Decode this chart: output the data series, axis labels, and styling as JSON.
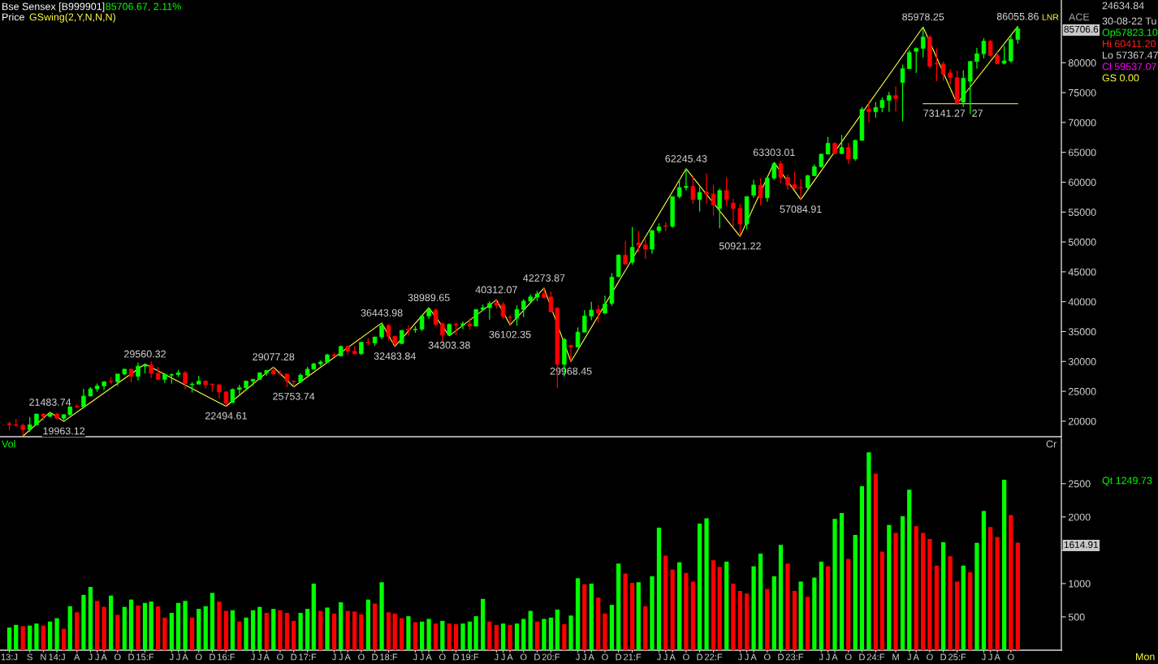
{
  "chart_data": [
    {
      "type": "candlestick",
      "title": "Bse Sensex [B999901]",
      "subtitle": "85706.67, 2.11%",
      "x": [
        "2013-06",
        "2013-07",
        "2013-08",
        "2013-09",
        "2013-10",
        "2013-11",
        "2013-12",
        "2014-01",
        "2014-02",
        "2014-03",
        "2014-04",
        "2014-05",
        "2014-06",
        "2014-07",
        "2014-08",
        "2014-09",
        "2014-10",
        "2014-11",
        "2014-12",
        "2015-01",
        "2015-02",
        "2015-03",
        "2015-04",
        "2015-05",
        "2015-06",
        "2015-07",
        "2015-08",
        "2015-09",
        "2015-10",
        "2015-11",
        "2015-12",
        "2016-01",
        "2016-02",
        "2016-03",
        "2016-04",
        "2016-05",
        "2016-06",
        "2016-07",
        "2016-08",
        "2016-09",
        "2016-10",
        "2016-11",
        "2016-12",
        "2017-01",
        "2017-02",
        "2017-03",
        "2017-04",
        "2017-05",
        "2017-06",
        "2017-07",
        "2017-08",
        "2017-09",
        "2017-10",
        "2017-11",
        "2017-12",
        "2018-01",
        "2018-02",
        "2018-03",
        "2018-04",
        "2018-05",
        "2018-06",
        "2018-07",
        "2018-08",
        "2018-09",
        "2018-10",
        "2018-11",
        "2018-12",
        "2019-01",
        "2019-02",
        "2019-03",
        "2019-04",
        "2019-05",
        "2019-06",
        "2019-07",
        "2019-08",
        "2019-09",
        "2019-10",
        "2019-11",
        "2019-12",
        "2020-01",
        "2020-02",
        "2020-03",
        "2020-04",
        "2020-05",
        "2020-06",
        "2020-07",
        "2020-08",
        "2020-09",
        "2020-10",
        "2020-11",
        "2020-12",
        "2021-01",
        "2021-02",
        "2021-03",
        "2021-04",
        "2021-05",
        "2021-06",
        "2021-07",
        "2021-08",
        "2021-09",
        "2021-10",
        "2021-11",
        "2021-12",
        "2022-01",
        "2022-02",
        "2022-03",
        "2022-04",
        "2022-05",
        "2022-06",
        "2022-07",
        "2022-08",
        "2022-09",
        "2022-10",
        "2022-11",
        "2022-12",
        "2023-01",
        "2023-02",
        "2023-03",
        "2023-04",
        "2023-05",
        "2023-06",
        "2023-07",
        "2023-08",
        "2023-09",
        "2023-10",
        "2023-11",
        "2023-12",
        "2024-01",
        "2024-02",
        "2024-03",
        "2024-04",
        "2024-05",
        "2024-06",
        "2024-07",
        "2024-08",
        "2024-09",
        "2024-10",
        "2024-11",
        "2024-12",
        "2025-01",
        "2025-02",
        "2025-03",
        "2025-04",
        "2025-05",
        "2025-06",
        "2025-07",
        "2025-08",
        "2025-09",
        "2025-10",
        "2025-11"
      ],
      "ohlc": [
        [
          19600,
          19900,
          18500,
          19400
        ],
        [
          19400,
          20400,
          19100,
          19300
        ],
        [
          19300,
          19600,
          17500,
          18600
        ],
        [
          18600,
          20700,
          18200,
          19400
        ],
        [
          19400,
          21200,
          19300,
          21200
        ],
        [
          21200,
          21300,
          20100,
          20800
        ],
        [
          20800,
          21483.74,
          20600,
          21200
        ],
        [
          21200,
          21400,
          20300,
          20500
        ],
        [
          20500,
          21100,
          19963.12,
          21100
        ],
        [
          21100,
          22500,
          20900,
          22400
        ],
        [
          22500,
          22900,
          22200,
          22400
        ],
        [
          22400,
          25400,
          22300,
          24200
        ],
        [
          24200,
          25700,
          24200,
          25400
        ],
        [
          25400,
          26300,
          24900,
          25900
        ],
        [
          25900,
          26700,
          25200,
          26600
        ],
        [
          26700,
          27400,
          26200,
          26600
        ],
        [
          26600,
          27900,
          25900,
          27900
        ],
        [
          27900,
          28800,
          27700,
          28700
        ],
        [
          28700,
          28800,
          26500,
          27500
        ],
        [
          27500,
          29800,
          26800,
          29200
        ],
        [
          29200,
          29560.32,
          28000,
          29400
        ],
        [
          29400,
          30000,
          27200,
          28000
        ],
        [
          28000,
          29100,
          26900,
          27000
        ],
        [
          27000,
          28100,
          26400,
          27800
        ],
        [
          27700,
          28000,
          26300,
          27800
        ],
        [
          27800,
          28600,
          27400,
          28100
        ],
        [
          28100,
          28400,
          25300,
          26300
        ],
        [
          26100,
          26500,
          24800,
          26200
        ],
        [
          26200,
          27600,
          26200,
          26700
        ],
        [
          26700,
          26800,
          25500,
          26100
        ],
        [
          26200,
          26300,
          24900,
          26100
        ],
        [
          26100,
          26200,
          23800,
          24900
        ],
        [
          24900,
          25000,
          22494.61,
          23000
        ],
        [
          23100,
          25500,
          23100,
          25300
        ],
        [
          25300,
          26100,
          24500,
          25600
        ],
        [
          25600,
          26800,
          25100,
          26700
        ],
        [
          26700,
          27100,
          25900,
          27000
        ],
        [
          27000,
          28200,
          27000,
          28100
        ],
        [
          28100,
          28500,
          27600,
          28500
        ],
        [
          28500,
          29077.28,
          27700,
          27900
        ],
        [
          28000,
          28500,
          27600,
          27900
        ],
        [
          27900,
          28000,
          25700,
          26700
        ],
        [
          26700,
          26800,
          25753.74,
          26600
        ],
        [
          26600,
          28000,
          26400,
          27700
        ],
        [
          27700,
          29100,
          27600,
          28700
        ],
        [
          28700,
          29800,
          28700,
          29600
        ],
        [
          29600,
          30200,
          29200,
          29900
        ],
        [
          29900,
          31300,
          29800,
          31100
        ],
        [
          31100,
          31500,
          30700,
          30900
        ],
        [
          30900,
          32700,
          30900,
          32500
        ],
        [
          32500,
          32700,
          31100,
          31700
        ],
        [
          31700,
          32500,
          31100,
          31300
        ],
        [
          31300,
          33300,
          31100,
          33200
        ],
        [
          33200,
          33900,
          32700,
          33100
        ],
        [
          33100,
          34100,
          32600,
          34100
        ],
        [
          34100,
          36443.98,
          33700,
          36000
        ],
        [
          36000,
          36300,
          33500,
          34200
        ],
        [
          34200,
          34300,
          32483.84,
          33000
        ],
        [
          33000,
          35200,
          33000,
          35200
        ],
        [
          35400,
          36000,
          34300,
          35200
        ],
        [
          35300,
          35900,
          34800,
          35400
        ],
        [
          35400,
          37600,
          35100,
          37600
        ],
        [
          37600,
          38989.65,
          37100,
          38600
        ],
        [
          38600,
          38900,
          36000,
          36200
        ],
        [
          36300,
          36600,
          33300,
          34400
        ],
        [
          34400,
          36400,
          34303.38,
          36200
        ],
        [
          36200,
          36600,
          34400,
          36100
        ],
        [
          36100,
          36700,
          35400,
          36300
        ],
        [
          36300,
          37200,
          35300,
          35900
        ],
        [
          35900,
          38700,
          35900,
          38700
        ],
        [
          38700,
          39500,
          38500,
          39000
        ],
        [
          39000,
          40100,
          37000,
          39700
        ],
        [
          39800,
          40312.07,
          38900,
          39400
        ],
        [
          39500,
          40000,
          37100,
          37500
        ],
        [
          37400,
          37800,
          36102.35,
          37300
        ],
        [
          37300,
          39400,
          36000,
          38700
        ],
        [
          38700,
          40400,
          37400,
          40100
        ],
        [
          40100,
          41200,
          39900,
          40800
        ],
        [
          40800,
          41800,
          40100,
          41300
        ],
        [
          41300,
          42273.87,
          40500,
          40700
        ],
        [
          40800,
          41700,
          38200,
          38300
        ],
        [
          38900,
          39100,
          25600,
          29500
        ],
        [
          29500,
          33900,
          27500,
          33700
        ],
        [
          32700,
          32800,
          29968.45,
          32400
        ],
        [
          32400,
          35700,
          32300,
          34900
        ],
        [
          34900,
          38600,
          34900,
          37600
        ],
        [
          37600,
          40000,
          36900,
          38600
        ],
        [
          38700,
          39400,
          36500,
          38100
        ],
        [
          38100,
          41000,
          37900,
          39600
        ],
        [
          39700,
          44800,
          39300,
          44100
        ],
        [
          44200,
          47900,
          44100,
          47800
        ],
        [
          47800,
          50200,
          46200,
          46300
        ],
        [
          46600,
          52500,
          46200,
          49100
        ],
        [
          49800,
          51800,
          48200,
          49500
        ],
        [
          49500,
          50400,
          47200,
          48800
        ],
        [
          48800,
          52000,
          48000,
          51900
        ],
        [
          51900,
          53100,
          51500,
          52500
        ],
        [
          52700,
          53300,
          51800,
          52600
        ],
        [
          52600,
          57600,
          52400,
          57600
        ],
        [
          57600,
          60400,
          57300,
          59100
        ],
        [
          59100,
          62245.43,
          58600,
          59300
        ],
        [
          59300,
          61000,
          56400,
          57100
        ],
        [
          57100,
          59200,
          55100,
          58300
        ],
        [
          58300,
          61500,
          56400,
          58000
        ],
        [
          58000,
          59600,
          54400,
          56200
        ],
        [
          55600,
          58900,
          52300,
          58600
        ],
        [
          58600,
          60800,
          56000,
          57100
        ],
        [
          56500,
          57200,
          52600,
          55600
        ],
        [
          55600,
          56400,
          50921.22,
          53000
        ],
        [
          53000,
          57600,
          52100,
          57600
        ],
        [
          57823.1,
          60411.2,
          57367.47,
          59537.07
        ],
        [
          59500,
          60700,
          56100,
          57400
        ],
        [
          57400,
          60800,
          56700,
          60700
        ],
        [
          60700,
          63303.01,
          60400,
          63100
        ],
        [
          63100,
          63600,
          59800,
          60800
        ],
        [
          60800,
          61300,
          58700,
          59500
        ],
        [
          59600,
          61700,
          58800,
          59000
        ],
        [
          59100,
          60500,
          57084.91,
          59000
        ],
        [
          59100,
          61200,
          58800,
          61100
        ],
        [
          61100,
          63000,
          61000,
          62600
        ],
        [
          62600,
          64800,
          62400,
          64700
        ],
        [
          64700,
          67600,
          64700,
          66500
        ],
        [
          66500,
          66700,
          64700,
          64800
        ],
        [
          64800,
          67900,
          64700,
          65800
        ],
        [
          65800,
          66600,
          63100,
          63900
        ],
        [
          63900,
          67100,
          63600,
          67000
        ],
        [
          67000,
          72600,
          67000,
          72200
        ],
        [
          72200,
          73400,
          70000,
          71800
        ],
        [
          71800,
          73400,
          70800,
          72500
        ],
        [
          72500,
          74200,
          71700,
          73700
        ],
        [
          73700,
          75100,
          71800,
          74500
        ],
        [
          74500,
          76000,
          71900,
          74000
        ],
        [
          76700,
          79700,
          70200,
          79000
        ],
        [
          79000,
          82100,
          79000,
          81700
        ],
        [
          81900,
          82600,
          78300,
          82400
        ],
        [
          82400,
          85978.25,
          80900,
          84300
        ],
        [
          84300,
          84600,
          79100,
          79400
        ],
        [
          79900,
          82400,
          76900,
          79800
        ],
        [
          79800,
          80200,
          77000,
          78100
        ],
        [
          78300,
          78900,
          76400,
          77500
        ],
        [
          77500,
          78700,
          73141.27,
          73200
        ],
        [
          73400,
          78700,
          72600,
          77400
        ],
        [
          76900,
          80300,
          71400,
          80200
        ],
        [
          80200,
          82500,
          79000,
          81500
        ],
        [
          81500,
          84100,
          80700,
          83600
        ],
        [
          83600,
          83800,
          81000,
          81200
        ],
        [
          81200,
          82000,
          79800,
          79800
        ],
        [
          79900,
          82800,
          79700,
          80300
        ],
        [
          80300,
          84700,
          80000,
          83900
        ],
        [
          83900,
          86055.86,
          83200,
          85706.67
        ]
      ],
      "colors": [
        "#ff0000",
        "#ff0000",
        "#ff0000",
        "#00ff00",
        "#00ff00",
        "#ff0000",
        "#00ff00",
        "#ff0000",
        "#00ff00",
        "#00ff00",
        "#ff0000",
        "#00ff00",
        "#00ff00",
        "#00ff00",
        "#00ff00",
        "#ff0000",
        "#00ff00",
        "#00ff00",
        "#ff0000",
        "#00ff00",
        "#00ff00",
        "#ff0000",
        "#ff0000",
        "#00ff00",
        "#00ff00",
        "#00ff00",
        "#ff0000",
        "#00ff00",
        "#00ff00",
        "#ff0000",
        "#ff0000",
        "#ff0000",
        "#ff0000",
        "#00ff00",
        "#00ff00",
        "#00ff00",
        "#00ff00",
        "#00ff00",
        "#00ff00",
        "#ff0000",
        "#ff0000",
        "#ff0000",
        "#ff0000",
        "#00ff00",
        "#00ff00",
        "#00ff00",
        "#00ff00",
        "#00ff00",
        "#ff0000",
        "#00ff00",
        "#ff0000",
        "#ff0000",
        "#00ff00",
        "#ff0000",
        "#00ff00",
        "#00ff00",
        "#ff0000",
        "#ff0000",
        "#00ff00",
        "#ff0000",
        "#00ff00",
        "#00ff00",
        "#00ff00",
        "#ff0000",
        "#ff0000",
        "#00ff00",
        "#ff0000",
        "#00ff00",
        "#ff0000",
        "#00ff00",
        "#00ff00",
        "#00ff00",
        "#ff0000",
        "#ff0000",
        "#ff0000",
        "#00ff00",
        "#00ff00",
        "#00ff00",
        "#00ff00",
        "#ff0000",
        "#ff0000",
        "#ff0000",
        "#00ff00",
        "#ff0000",
        "#00ff00",
        "#00ff00",
        "#00ff00",
        "#ff0000",
        "#00ff00",
        "#00ff00",
        "#00ff00",
        "#ff0000",
        "#00ff00",
        "#ff0000",
        "#ff0000",
        "#00ff00",
        "#00ff00",
        "#ff0000",
        "#00ff00",
        "#00ff00",
        "#00ff00",
        "#ff0000",
        "#00ff00",
        "#ff0000",
        "#ff0000",
        "#00ff00",
        "#ff0000",
        "#ff0000",
        "#ff0000",
        "#00ff00",
        "#00ff00",
        "#ff0000",
        "#00ff00",
        "#00ff00",
        "#ff0000",
        "#ff0000",
        "#ff0000",
        "#ff0000",
        "#00ff00",
        "#00ff00",
        "#00ff00",
        "#00ff00",
        "#ff0000",
        "#00ff00",
        "#ff0000",
        "#00ff00",
        "#00ff00",
        "#ff0000",
        "#00ff00",
        "#00ff00",
        "#00ff00",
        "#ff0000",
        "#00ff00",
        "#00ff00",
        "#00ff00",
        "#00ff00",
        "#ff0000",
        "#ff0000",
        "#ff0000",
        "#ff0000",
        "#ff0000",
        "#00ff00",
        "#00ff00",
        "#00ff00",
        "#00ff00",
        "#ff0000",
        "#ff0000",
        "#00ff00",
        "#00ff00",
        "#00ff00"
      ],
      "series": [
        {
          "name": "GSwing(2,Y,N,N,N)",
          "type": "line",
          "color": "#ffff40",
          "x": [
            "2013-08",
            "2013-12",
            "2014-02",
            "2015-02",
            "2016-02",
            "2016-09",
            "2016-12",
            "2018-01",
            "2018-03",
            "2018-08",
            "2018-11",
            "2019-06",
            "2019-08",
            "2020-01",
            "2020-05",
            "2021-10",
            "2022-06",
            "2022-11",
            "2023-03",
            "2024-09",
            "2025-02",
            "2025-11"
          ],
          "values": [
            17500,
            21483.74,
            19963.12,
            29560.32,
            22494.61,
            29077.28,
            25753.74,
            36443.98,
            32483.84,
            38989.65,
            34303.38,
            40312.07,
            36102.35,
            42273.87,
            29968.45,
            62245.43,
            50921.22,
            63303.01,
            57084.91,
            85978.25,
            73141.27,
            86055.86
          ],
          "value_labels": [
            null,
            "21483.74",
            "19963.12",
            "29560.32",
            "22494.61",
            "29077.28",
            "25753.74",
            "36443.98",
            "32483.84",
            "38989.65",
            "34303.38",
            "40312.07",
            "36102.35",
            "42273.87",
            "29968.45",
            "62245.43",
            "50921.22",
            "63303.01",
            "57084.91",
            "85978.25",
            null,
            "86055.86"
          ]
        },
        {
          "type": "line",
          "color": "#ffff80",
          "x": [
            "2024-09",
            "2025-11"
          ],
          "values": [
            73141.27,
            73141.27
          ],
          "value_labels": [
            "73141.27",
            null
          ]
        }
      ],
      "xlim": [
        "2013-04-20",
        "2026-05-16"
      ],
      "ylim": [
        17400,
        90500
      ],
      "yticks": [
        20000,
        25000,
        30000,
        35000,
        40000,
        45000,
        50000,
        55000,
        60000,
        65000,
        70000,
        75000,
        80000
      ],
      "tick_labels": "y",
      "legend": "top left",
      "annotations": [
        "Price",
        "LNR",
        "ACE",
        "24634.84",
        "30-08-22 Tu",
        "Op57823.10",
        "Hi 60411.20",
        "Lo 57367.47",
        "Cl 59537.07",
        "GS 0.00",
        "85706.6",
        {
          "text": "27",
          "x": "2025-02",
          "y": 73141.27
        }
      ]
    },
    {
      "type": "bar",
      "title": "Vol",
      "x": [
        "2013-06",
        "2013-07",
        "2013-08",
        "2013-09",
        "2013-10",
        "2013-11",
        "2013-12",
        "2014-01",
        "2014-02",
        "2014-03",
        "2014-04",
        "2014-05",
        "2014-06",
        "2014-07",
        "2014-08",
        "2014-09",
        "2014-10",
        "2014-11",
        "2014-12",
        "2015-01",
        "2015-02",
        "2015-03",
        "2015-04",
        "2015-05",
        "2015-06",
        "2015-07",
        "2015-08",
        "2015-09",
        "2015-10",
        "2015-11",
        "2015-12",
        "2016-01",
        "2016-02",
        "2016-03",
        "2016-04",
        "2016-05",
        "2016-06",
        "2016-07",
        "2016-08",
        "2016-09",
        "2016-10",
        "2016-11",
        "2016-12",
        "2017-01",
        "2017-02",
        "2017-03",
        "2017-04",
        "2017-05",
        "2017-06",
        "2017-07",
        "2017-08",
        "2017-09",
        "2017-10",
        "2017-11",
        "2017-12",
        "2018-01",
        "2018-02",
        "2018-03",
        "2018-04",
        "2018-05",
        "2018-06",
        "2018-07",
        "2018-08",
        "2018-09",
        "2018-10",
        "2018-11",
        "2018-12",
        "2019-01",
        "2019-02",
        "2019-03",
        "2019-04",
        "2019-05",
        "2019-06",
        "2019-07",
        "2019-08",
        "2019-09",
        "2019-10",
        "2019-11",
        "2019-12",
        "2020-01",
        "2020-02",
        "2020-03",
        "2020-04",
        "2020-05",
        "2020-06",
        "2020-07",
        "2020-08",
        "2020-09",
        "2020-10",
        "2020-11",
        "2020-12",
        "2021-01",
        "2021-02",
        "2021-03",
        "2021-04",
        "2021-05",
        "2021-06",
        "2021-07",
        "2021-08",
        "2021-09",
        "2021-10",
        "2021-11",
        "2021-12",
        "2022-01",
        "2022-02",
        "2022-03",
        "2022-04",
        "2022-05",
        "2022-06",
        "2022-07",
        "2022-08",
        "2022-09",
        "2022-10",
        "2022-11",
        "2022-12",
        "2023-01",
        "2023-02",
        "2023-03",
        "2023-04",
        "2023-05",
        "2023-06",
        "2023-07",
        "2023-08",
        "2023-09",
        "2023-10",
        "2023-11",
        "2023-12",
        "2024-01",
        "2024-02",
        "2024-03",
        "2024-04",
        "2024-05",
        "2024-06",
        "2024-07",
        "2024-08",
        "2024-09",
        "2024-10",
        "2024-11",
        "2024-12",
        "2025-01",
        "2025-02",
        "2025-03",
        "2025-04",
        "2025-05",
        "2025-06",
        "2025-07",
        "2025-08",
        "2025-09",
        "2025-10",
        "2025-11"
      ],
      "values": [
        340,
        380,
        360,
        370,
        400,
        370,
        430,
        480,
        320,
        660,
        570,
        830,
        950,
        740,
        650,
        820,
        530,
        650,
        760,
        670,
        710,
        730,
        660,
        490,
        560,
        710,
        740,
        490,
        620,
        660,
        860,
        730,
        590,
        600,
        430,
        490,
        600,
        650,
        560,
        620,
        600,
        560,
        440,
        560,
        620,
        1000,
        590,
        640,
        550,
        720,
        590,
        580,
        540,
        760,
        700,
        1020,
        570,
        550,
        480,
        510,
        420,
        430,
        470,
        400,
        440,
        400,
        390,
        400,
        430,
        510,
        770,
        430,
        380,
        400,
        380,
        400,
        470,
        590,
        430,
        470,
        490,
        610,
        390,
        520,
        1080,
        990,
        1000,
        790,
        550,
        680,
        1300,
        1150,
        1010,
        1020,
        660,
        1110,
        1840,
        1420,
        1210,
        1320,
        1160,
        1030,
        1900,
        1980,
        1350,
        1250,
        1330,
        1000,
        890,
        850,
        1260,
        1450,
        920,
        1110,
        1580,
        1300,
        890,
        1030,
        800,
        1090,
        1330,
        1260,
        1970,
        2060,
        1370,
        1730,
        2460,
        2970,
        2650,
        1480,
        1880,
        1760,
        2010,
        2410,
        1860,
        1760,
        1670,
        1270,
        1620,
        1410,
        1030,
        1270,
        1170,
        1610,
        2090,
        1850,
        1700,
        2560,
        2030,
        1614.91
      ],
      "colors": [
        "#00ff00",
        "#00ff00",
        "#ff0000",
        "#00ff00",
        "#00ff00",
        "#ff0000",
        "#00ff00",
        "#00ff00",
        "#ff0000",
        "#00ff00",
        "#ff0000",
        "#00ff00",
        "#00ff00",
        "#ff0000",
        "#ff0000",
        "#00ff00",
        "#ff0000",
        "#00ff00",
        "#00ff00",
        "#ff0000",
        "#00ff00",
        "#00ff00",
        "#ff0000",
        "#ff0000",
        "#00ff00",
        "#00ff00",
        "#00ff00",
        "#ff0000",
        "#00ff00",
        "#00ff00",
        "#00ff00",
        "#ff0000",
        "#ff0000",
        "#00ff00",
        "#ff0000",
        "#00ff00",
        "#00ff00",
        "#00ff00",
        "#ff0000",
        "#00ff00",
        "#ff0000",
        "#ff0000",
        "#ff0000",
        "#00ff00",
        "#00ff00",
        "#00ff00",
        "#ff0000",
        "#00ff00",
        "#ff0000",
        "#00ff00",
        "#ff0000",
        "#ff0000",
        "#ff0000",
        "#00ff00",
        "#ff0000",
        "#00ff00",
        "#ff0000",
        "#ff0000",
        "#ff0000",
        "#00ff00",
        "#ff0000",
        "#00ff00",
        "#00ff00",
        "#ff0000",
        "#00ff00",
        "#ff0000",
        "#ff0000",
        "#00ff00",
        "#00ff00",
        "#00ff00",
        "#00ff00",
        "#ff0000",
        "#ff0000",
        "#00ff00",
        "#ff0000",
        "#00ff00",
        "#00ff00",
        "#00ff00",
        "#ff0000",
        "#00ff00",
        "#00ff00",
        "#00ff00",
        "#ff0000",
        "#00ff00",
        "#00ff00",
        "#ff0000",
        "#00ff00",
        "#ff0000",
        "#ff0000",
        "#00ff00",
        "#00ff00",
        "#ff0000",
        "#ff0000",
        "#00ff00",
        "#ff0000",
        "#00ff00",
        "#00ff00",
        "#ff0000",
        "#ff0000",
        "#00ff00",
        "#ff0000",
        "#ff0000",
        "#00ff00",
        "#00ff00",
        "#ff0000",
        "#ff0000",
        "#00ff00",
        "#ff0000",
        "#ff0000",
        "#ff0000",
        "#00ff00",
        "#00ff00",
        "#ff0000",
        "#00ff00",
        "#00ff00",
        "#ff0000",
        "#ff0000",
        "#00ff00",
        "#ff0000",
        "#00ff00",
        "#00ff00",
        "#ff0000",
        "#00ff00",
        "#00ff00",
        "#ff0000",
        "#00ff00",
        "#00ff00",
        "#00ff00",
        "#ff0000",
        "#ff0000",
        "#00ff00",
        "#ff0000",
        "#00ff00",
        "#00ff00",
        "#ff0000",
        "#ff0000",
        "#ff0000",
        "#ff0000",
        "#00ff00",
        "#ff0000",
        "#ff0000",
        "#00ff00",
        "#ff0000",
        "#00ff00",
        "#00ff00",
        "#ff0000",
        "#ff0000",
        "#00ff00",
        "#ff0000",
        "#ff0000"
      ],
      "xlim": [
        "2013-04-20",
        "2026-05-16"
      ],
      "ylim": [
        0,
        3180
      ],
      "xticks": [
        {
          "value": "2013-06",
          "label": "13:J"
        },
        {
          "value": "2013-09",
          "label": "S"
        },
        {
          "value": "2013-11",
          "label": "N"
        },
        {
          "value": "2014-01",
          "label": "14:J"
        },
        {
          "value": "2014-04",
          "label": "A"
        },
        {
          "value": "2014-06",
          "label": "J"
        },
        {
          "value": "2014-07",
          "label": "J"
        },
        {
          "value": "2014-08",
          "label": "A"
        },
        {
          "value": "2014-10",
          "label": "O"
        },
        {
          "value": "2014-12",
          "label": "D"
        },
        {
          "value": "2015-02",
          "label": "15:F"
        },
        {
          "value": "2015-06",
          "label": "J"
        },
        {
          "value": "2015-07",
          "label": "J"
        },
        {
          "value": "2015-08",
          "label": "A"
        },
        {
          "value": "2015-10",
          "label": "O"
        },
        {
          "value": "2015-12",
          "label": "D"
        },
        {
          "value": "2016-02",
          "label": "16:F"
        },
        {
          "value": "2016-06",
          "label": "J"
        },
        {
          "value": "2016-07",
          "label": "J"
        },
        {
          "value": "2016-08",
          "label": "A"
        },
        {
          "value": "2016-10",
          "label": "O"
        },
        {
          "value": "2016-12",
          "label": "D"
        },
        {
          "value": "2017-02",
          "label": "17:F"
        },
        {
          "value": "2017-06",
          "label": "J"
        },
        {
          "value": "2017-07",
          "label": "J"
        },
        {
          "value": "2017-08",
          "label": "A"
        },
        {
          "value": "2017-10",
          "label": "O"
        },
        {
          "value": "2017-12",
          "label": "D"
        },
        {
          "value": "2018-02",
          "label": "18:F"
        },
        {
          "value": "2018-06",
          "label": "J"
        },
        {
          "value": "2018-07",
          "label": "J"
        },
        {
          "value": "2018-08",
          "label": "A"
        },
        {
          "value": "2018-10",
          "label": "O"
        },
        {
          "value": "2018-12",
          "label": "D"
        },
        {
          "value": "2019-02",
          "label": "19:F"
        },
        {
          "value": "2019-06",
          "label": "J"
        },
        {
          "value": "2019-07",
          "label": "J"
        },
        {
          "value": "2019-08",
          "label": "A"
        },
        {
          "value": "2019-10",
          "label": "O"
        },
        {
          "value": "2019-12",
          "label": "D"
        },
        {
          "value": "2020-02",
          "label": "20:F"
        },
        {
          "value": "2020-06",
          "label": "J"
        },
        {
          "value": "2020-07",
          "label": "J"
        },
        {
          "value": "2020-08",
          "label": "A"
        },
        {
          "value": "2020-10",
          "label": "O"
        },
        {
          "value": "2020-12",
          "label": "D"
        },
        {
          "value": "2021-02",
          "label": "21:F"
        },
        {
          "value": "2021-06",
          "label": "J"
        },
        {
          "value": "2021-07",
          "label": "J"
        },
        {
          "value": "2021-08",
          "label": "A"
        },
        {
          "value": "2021-10",
          "label": "O"
        },
        {
          "value": "2021-12",
          "label": "D"
        },
        {
          "value": "2022-02",
          "label": "22:F"
        },
        {
          "value": "2022-06",
          "label": "J"
        },
        {
          "value": "2022-07",
          "label": "J"
        },
        {
          "value": "2022-08",
          "label": "A"
        },
        {
          "value": "2022-10",
          "label": "O"
        },
        {
          "value": "2022-12",
          "label": "D"
        },
        {
          "value": "2023-02",
          "label": "23:F"
        },
        {
          "value": "2023-06",
          "label": "J"
        },
        {
          "value": "2023-07",
          "label": "J"
        },
        {
          "value": "2023-08",
          "label": "A"
        },
        {
          "value": "2023-10",
          "label": "O"
        },
        {
          "value": "2023-12",
          "label": "D"
        },
        {
          "value": "2024-02",
          "label": "24:F"
        },
        {
          "value": "2024-05",
          "label": "M"
        },
        {
          "value": "2024-07",
          "label": "J"
        },
        {
          "value": "2024-08",
          "label": "A"
        },
        {
          "value": "2024-10",
          "label": "O"
        },
        {
          "value": "2024-12",
          "label": "D"
        },
        {
          "value": "2025-02",
          "label": "25:F"
        },
        {
          "value": "2025-06",
          "label": "J"
        },
        {
          "value": "2025-07",
          "label": "J"
        },
        {
          "value": "2025-08",
          "label": "A"
        },
        {
          "value": "2025-10",
          "label": "O"
        }
      ],
      "yticks": [
        500,
        1000,
        {
          "value": 1500,
          "label": null
        },
        2000,
        2500
      ],
      "annotations": [
        "Cr",
        "Qt 1249.73",
        "1614.91",
        "Mon"
      ]
    }
  ]
}
